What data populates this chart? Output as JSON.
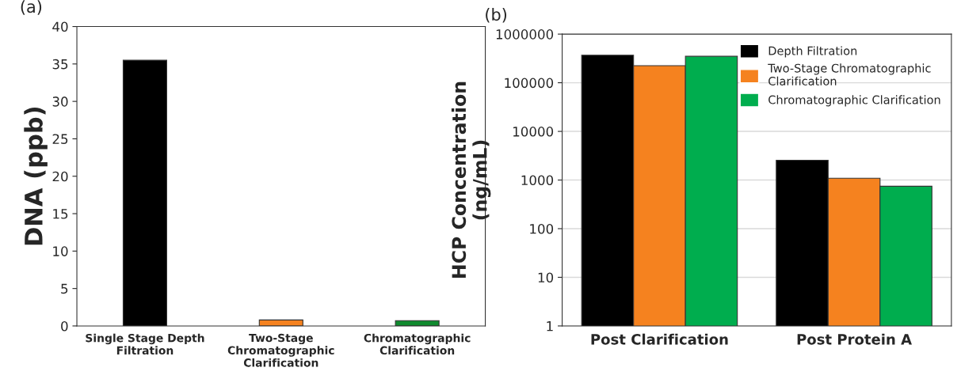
{
  "chart_data": [
    {
      "type": "bar",
      "title": "(a)",
      "ylabel": "DNA (ppb)",
      "categories": [
        "Single Stage Depth\nFiltration",
        "Two-Stage\nChromatographic\nClarification",
        "Chromatographic\nClarification"
      ],
      "values": [
        35.5,
        0.8,
        0.7
      ],
      "colors": [
        "#000000",
        "#f5821f",
        "#0f8a2e"
      ],
      "ylim": [
        0,
        40
      ],
      "yticks": [
        0,
        5,
        10,
        15,
        20,
        25,
        30,
        35,
        40
      ],
      "grid": false,
      "legend": false
    },
    {
      "type": "bar",
      "title": "(b)",
      "ylabel": "HCP Concentration\n(ng/mL)",
      "categories": [
        "Post Clarification",
        "Post Protein A"
      ],
      "log": true,
      "series": [
        {
          "name": "Depth Filtration",
          "color": "#000000",
          "values": [
            369000,
            2550
          ]
        },
        {
          "name": "Two-Stage Chromatographic\nClarification",
          "color": "#f5821f",
          "values": [
            224000,
            1090
          ]
        },
        {
          "name": "Chromatographic Clarification",
          "color": "#00ad4e",
          "values": [
            350000,
            745
          ]
        }
      ],
      "ylim": [
        1,
        1000000
      ],
      "yticks": [
        1,
        10,
        100,
        1000,
        10000,
        100000,
        1000000
      ],
      "grid": "y",
      "legend": "top right"
    }
  ]
}
